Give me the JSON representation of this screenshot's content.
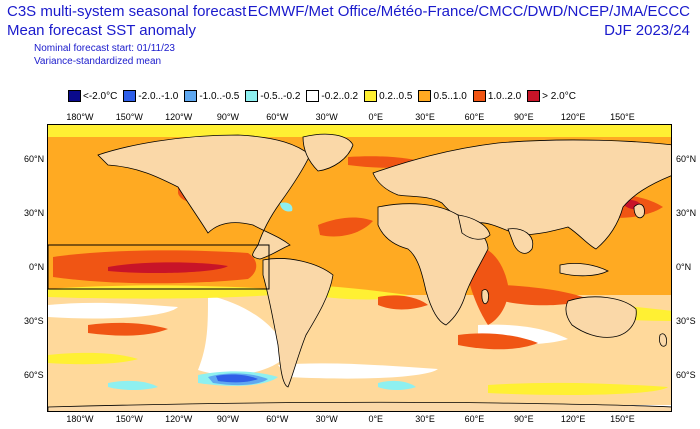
{
  "header": {
    "title_line1": "C3S multi-system seasonal forecast",
    "title_line2": "Mean forecast SST anomaly",
    "nominal_start": "Nominal forecast start: 01/11/23",
    "variance_note": "Variance-standardized mean",
    "centres": "ECMWF/Met Office/Météo-France/CMCC/DWD/NCEP/JMA/ECCC",
    "season": "DJF 2023/24"
  },
  "legend": [
    {
      "label": "<-2.0°C",
      "color": "#0a0a8c"
    },
    {
      "label": "-2.0..-1.0",
      "color": "#2f5fe8"
    },
    {
      "label": "-1.0..-0.5",
      "color": "#5fa8f0"
    },
    {
      "label": "-0.5..-0.2",
      "color": "#8ef0f0"
    },
    {
      "label": "-0.2..0.2",
      "color": "#ffffff"
    },
    {
      "label": "0.2..0.5",
      "color": "#fff033"
    },
    {
      "label": "0.5..1.0",
      "color": "#ffaa22"
    },
    {
      "label": "1.0..2.0",
      "color": "#f05514"
    },
    {
      "label": "> 2.0°C",
      "color": "#c81428"
    }
  ],
  "colors": {
    "land": "#fad8a8",
    "ocean_base": "#ffaa22",
    "frame": "#000000"
  },
  "axes": {
    "lon_ticks": [
      "180°W",
      "150°W",
      "120°W",
      "90°W",
      "60°W",
      "30°W",
      "0°E",
      "30°E",
      "60°E",
      "90°E",
      "120°E",
      "150°E"
    ],
    "lat_ticks_left": [
      "60°N",
      "30°N",
      "0°N",
      "30°S",
      "60°S"
    ],
    "lat_ticks_right": [
      "60°N",
      "30°N",
      "0°N",
      "30°S",
      "60°S"
    ]
  },
  "chart_data": {
    "type": "heatmap",
    "title": "Mean forecast SST anomaly",
    "xlabel": "",
    "ylabel": "",
    "lon_range": [
      -200,
      180
    ],
    "lat_range": [
      -80,
      80
    ],
    "highlight_box": {
      "lon": [
        -200,
        -70
      ],
      "lat": [
        -15,
        15
      ]
    },
    "anomaly_regions": [
      {
        "category": "1.0..2.0",
        "lon": [
          -195,
          -80
        ],
        "lat": [
          -9,
          9
        ]
      },
      {
        "category": "> 2.0°C",
        "lon": [
          -175,
          -110
        ],
        "lat": [
          -3,
          3
        ]
      },
      {
        "category": "-2.0..-1.0",
        "lon": [
          -115,
          -75
        ],
        "lat": [
          -70,
          -62
        ]
      },
      {
        "category": "1.0..2.0",
        "lon": [
          40,
          80
        ],
        "lat": [
          -25,
          10
        ]
      },
      {
        "category": "> 2.0°C",
        "lon": [
          143,
          150
        ],
        "lat": [
          36,
          40
        ]
      },
      {
        "category": "1.0..2.0",
        "lon": [
          135,
          165
        ],
        "lat": [
          20,
          45
        ]
      },
      {
        "category": "-0.5..-0.2",
        "lon": [
          -50,
          -40
        ],
        "lat": [
          36,
          42
        ]
      }
    ]
  }
}
